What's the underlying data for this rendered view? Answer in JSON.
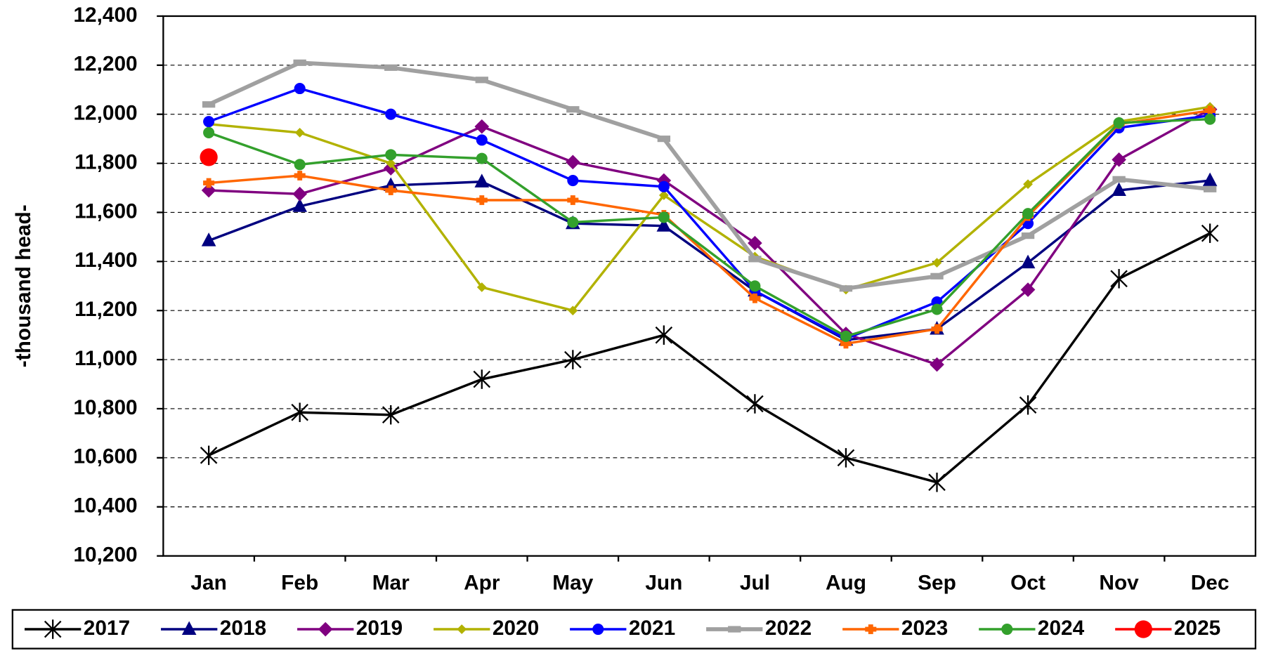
{
  "chart_data": {
    "type": "line",
    "y_label": "-thousand head-",
    "categories": [
      "Jan",
      "Feb",
      "Mar",
      "Apr",
      "May",
      "Jun",
      "Jul",
      "Aug",
      "Sep",
      "Oct",
      "Nov",
      "Dec"
    ],
    "ylim": [
      10200,
      12400
    ],
    "yticks": [
      {
        "value": 10200,
        "label": "10,200"
      },
      {
        "value": 10400,
        "label": "10,400"
      },
      {
        "value": 10600,
        "label": "10,600"
      },
      {
        "value": 10800,
        "label": "10,800"
      },
      {
        "value": 11000,
        "label": "11,000"
      },
      {
        "value": 11200,
        "label": "11,200"
      },
      {
        "value": 11400,
        "label": "11,400"
      },
      {
        "value": 11600,
        "label": "11,600"
      },
      {
        "value": 11800,
        "label": "11,800"
      },
      {
        "value": 12000,
        "label": "12,000"
      },
      {
        "value": 12200,
        "label": "12,200"
      },
      {
        "value": 12400,
        "label": "12,400"
      }
    ],
    "grid": true,
    "legend": "bottom",
    "series": [
      {
        "name": "2017",
        "color": "#000000",
        "marker": "star",
        "values": [
          10610,
          10785,
          10775,
          10920,
          11000,
          11100,
          10820,
          10600,
          10500,
          10815,
          11330,
          11515
        ]
      },
      {
        "name": "2018",
        "color": "#000080",
        "marker": "triangle",
        "values": [
          11485,
          11625,
          11710,
          11725,
          11555,
          11545,
          11280,
          11080,
          11125,
          11395,
          11690,
          11730
        ]
      },
      {
        "name": "2019",
        "color": "#800080",
        "marker": "diamond",
        "values": [
          11690,
          11675,
          11780,
          11950,
          11805,
          11730,
          11475,
          11105,
          10980,
          11285,
          11815,
          12020
        ]
      },
      {
        "name": "2020",
        "color": "#b2b200",
        "marker": "small-diamond",
        "values": [
          11960,
          11925,
          11800,
          11295,
          11200,
          11670,
          11420,
          11285,
          11395,
          11715,
          11970,
          12030
        ]
      },
      {
        "name": "2021",
        "color": "#0000ff",
        "marker": "circle",
        "values": [
          11970,
          12105,
          12000,
          11895,
          11730,
          11705,
          11280,
          11085,
          11235,
          11555,
          11945,
          11995
        ]
      },
      {
        "name": "2022",
        "color": "#a0a0a0",
        "marker": "dash",
        "values": [
          12040,
          12210,
          12190,
          12140,
          12020,
          11900,
          11410,
          11290,
          11340,
          11505,
          11735,
          11695
        ]
      },
      {
        "name": "2023",
        "color": "#ff6600",
        "marker": "plus",
        "values": [
          11720,
          11750,
          11690,
          11650,
          11650,
          11590,
          11250,
          11065,
          11125,
          11585,
          11960,
          12015
        ]
      },
      {
        "name": "2024",
        "color": "#33a02c",
        "marker": "circle",
        "values": [
          11925,
          11795,
          11835,
          11820,
          11560,
          11580,
          11300,
          11095,
          11205,
          11595,
          11965,
          11980
        ]
      },
      {
        "name": "2025",
        "color": "#ff0000",
        "marker": "big-circle",
        "values": [
          11825,
          null,
          null,
          null,
          null,
          null,
          null,
          null,
          null,
          null,
          null,
          null
        ]
      }
    ]
  }
}
